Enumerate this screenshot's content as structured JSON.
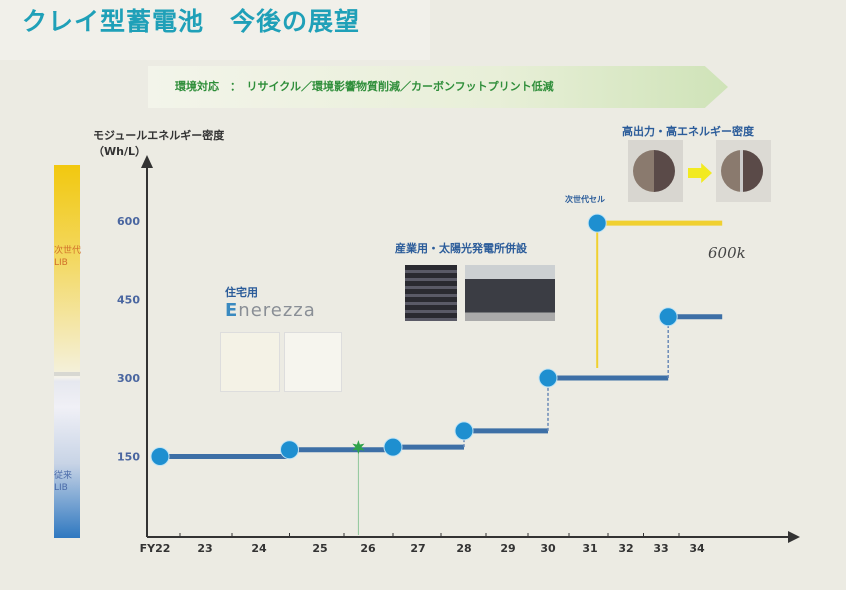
{
  "title": "クレイ型蓄電池　今後の展望",
  "banner": "環境対応　：　リサイクル／環境影響物質削減／カーボンフットプリント低減",
  "colorbar": {
    "top_label": "次世代\nLIB",
    "bottom_label": "従来\nLIB",
    "top_color": "#f2c80f",
    "bottom_color": "#2f78c0"
  },
  "annotations": {
    "residential": "住宅用",
    "brand": "nerezza",
    "industrial": "産業用・太陽光発電所併設",
    "high_output": "高出力・高エネルギー密度",
    "next_gen_cell": "次世代セル",
    "handwritten": "600k"
  },
  "chart_data": {
    "type": "line",
    "ylabel": "モジュールエネルギー密度（Wh/L）",
    "x_ticks": [
      "FY22",
      "23",
      "24",
      "25",
      "26",
      "27",
      "28",
      "29",
      "30",
      "31",
      "32",
      "33",
      "34"
    ],
    "y_ticks": [
      150,
      300,
      450,
      600
    ],
    "ylim": [
      0,
      700
    ],
    "grid": false,
    "series": [
      {
        "color": "#3d6fa6",
        "points": [
          [
            22.1,
            150
          ],
          [
            24.5,
            163
          ],
          [
            26.5,
            168
          ],
          [
            28.0,
            199
          ],
          [
            30.0,
            300
          ],
          [
            33.2,
            417
          ]
        ],
        "end_x": 34.7
      },
      {
        "color": "#f0d030",
        "points": [
          [
            31.2,
            596
          ]
        ],
        "end_x": 34.7
      }
    ],
    "milestone_star": {
      "x": 25.8,
      "y": 168,
      "color": "#2fa34a"
    },
    "marker_color": "#1e8fd0"
  }
}
